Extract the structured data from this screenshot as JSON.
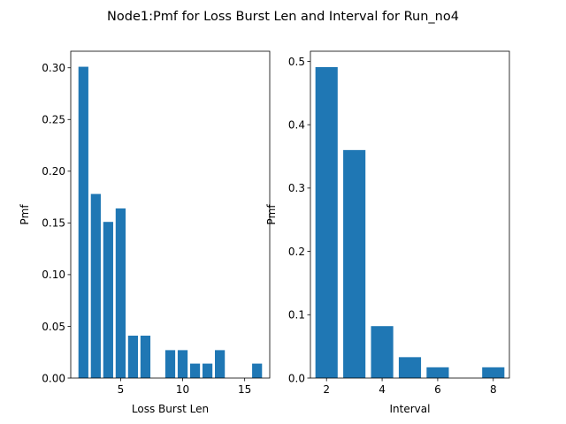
{
  "suptitle": "Node1:Pmf for Loss Burst Len and Interval for Run_no4",
  "colors": {
    "bar": "#1f77b4",
    "axis": "#000000",
    "background": "#ffffff"
  },
  "chart_data": [
    {
      "type": "bar",
      "title": "",
      "xlabel": "Loss Burst Len",
      "ylabel": "Pmf",
      "x": [
        2,
        3,
        4,
        5,
        6,
        7,
        9,
        10,
        11,
        12,
        13,
        16
      ],
      "values": [
        0.301,
        0.178,
        0.151,
        0.164,
        0.041,
        0.041,
        0.027,
        0.027,
        0.014,
        0.014,
        0.027,
        0.014
      ],
      "xlim": [
        0.98,
        17.02
      ],
      "ylim": [
        0,
        0.316
      ],
      "xticks": [
        5,
        10,
        15
      ],
      "yticks": [
        0.0,
        0.05,
        0.1,
        0.15,
        0.2,
        0.25,
        0.3
      ],
      "xtick_labels": [
        "5",
        "10",
        "15"
      ],
      "ytick_labels": [
        "0.00",
        "0.05",
        "0.10",
        "0.15",
        "0.20",
        "0.25",
        "0.30"
      ],
      "grid": false,
      "legend": false
    },
    {
      "type": "bar",
      "title": "",
      "xlabel": "Interval",
      "ylabel": "Pmf",
      "x": [
        2,
        3,
        4,
        5,
        6,
        8
      ],
      "values": [
        0.491,
        0.36,
        0.082,
        0.033,
        0.017,
        0.017
      ],
      "xlim": [
        1.42,
        8.58
      ],
      "ylim": [
        0,
        0.516
      ],
      "xticks": [
        2,
        4,
        6,
        8
      ],
      "yticks": [
        0.0,
        0.1,
        0.2,
        0.3,
        0.4,
        0.5
      ],
      "xtick_labels": [
        "2",
        "4",
        "6",
        "8"
      ],
      "ytick_labels": [
        "0.0",
        "0.1",
        "0.2",
        "0.3",
        "0.4",
        "0.5"
      ],
      "grid": false,
      "legend": false
    }
  ]
}
